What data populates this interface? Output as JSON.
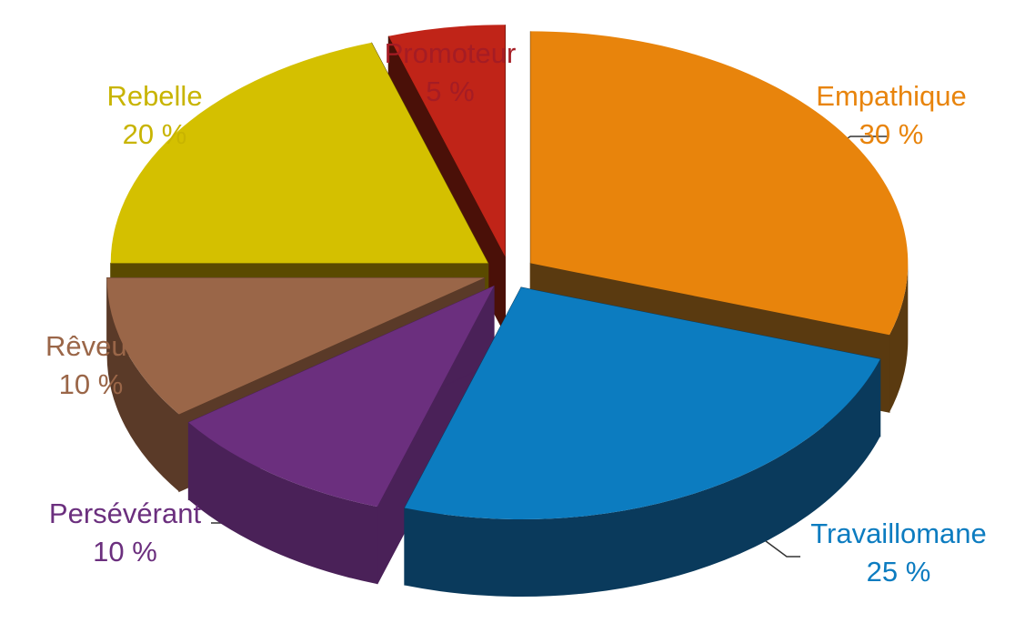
{
  "chart_data": {
    "type": "pie",
    "style": "3d-exploded",
    "slices": [
      {
        "label": "Empathique",
        "pct_label": "30 %",
        "value": 30,
        "color": "#E8840C",
        "side_color": "#5A3A10"
      },
      {
        "label": "Travaillomane",
        "pct_label": "25 %",
        "value": 25,
        "color": "#0C7CC0",
        "side_color": "#0A3A5C"
      },
      {
        "label": "Persévérant",
        "pct_label": "10 %",
        "value": 10,
        "color": "#6B2F7E",
        "side_color": "#4A2158"
      },
      {
        "label": "Rêveur",
        "pct_label": "10 %",
        "value": 10,
        "color": "#9A6648",
        "side_color": "#5A3A28"
      },
      {
        "label": "Rebelle",
        "pct_label": "20 %",
        "value": 20,
        "color": "#D4C000",
        "side_color": "#5A4A00"
      },
      {
        "label": "Promoteur",
        "pct_label": "5 %",
        "value": 5,
        "color": "#C02418",
        "side_color": "#4A1008"
      }
    ]
  }
}
